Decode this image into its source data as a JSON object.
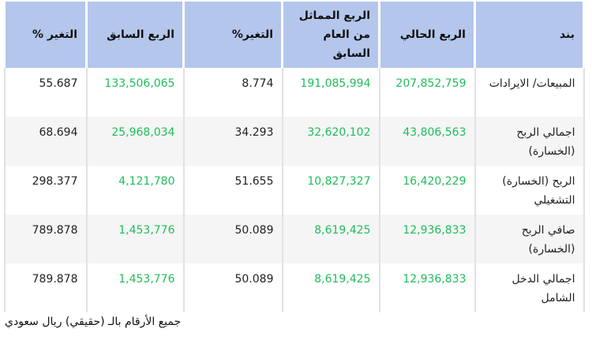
{
  "headers": [
    "بند",
    "الربع الحالي",
    "الربع المماثل من العام السابق",
    "التغير%",
    "الربع السابق",
    "التغير %"
  ],
  "rows": [
    {
      "item": "المبيعات/ الايرادات",
      "current": "207,852,759",
      "same_last_year": "191,085,994",
      "change_yoy": "8.774",
      "previous": "133,506,065",
      "change_qoq": "55.687"
    },
    {
      "item": "اجمالي الربح (الخسارة)",
      "current": "43,806,563",
      "same_last_year": "32,620,102",
      "change_yoy": "34.293",
      "previous": "25,968,034",
      "change_qoq": "68.694"
    },
    {
      "item": "الربح (الخسارة) التشغيلي",
      "current": "16,420,229",
      "same_last_year": "10,827,327",
      "change_yoy": "51.655",
      "previous": "4,121,780",
      "change_qoq": "298.377"
    },
    {
      "item": "صافي الربح (الخسارة)",
      "current": "12,936,833",
      "same_last_year": "8,619,425",
      "change_yoy": "50.089",
      "previous": "1,453,776",
      "change_qoq": "789.878"
    },
    {
      "item": "اجمالي الدخل الشامل",
      "current": "12,936,833",
      "same_last_year": "8,619,425",
      "change_yoy": "50.089",
      "previous": "1,453,776",
      "change_qoq": "789.878"
    }
  ],
  "footer": "جميع الأرقام بالـ (حقيقي) ريال سعودي",
  "colors": {
    "header_bg": "#b4c6ec",
    "value_green": "#1fbd59"
  }
}
